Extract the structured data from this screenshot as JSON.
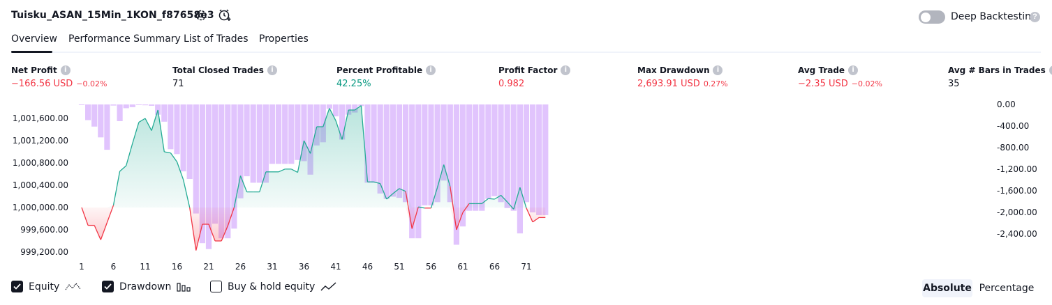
{
  "header": {
    "strategy_title": "Tuisku_ASAN_15Min_1KON_f87658e3",
    "deep_backtesting_label": "Deep Backtesting",
    "deep_backtesting_on": false,
    "icons": [
      "settings-icon",
      "add-alert-icon",
      "help-icon"
    ]
  },
  "tabs": [
    {
      "label": "Overview",
      "active": true
    },
    {
      "label": "Performance Summary",
      "active": false
    },
    {
      "label": "List of Trades",
      "active": false
    },
    {
      "label": "Properties",
      "active": false
    }
  ],
  "metrics": [
    {
      "label": "Net Profit",
      "value": "−166.56 USD",
      "percent": "−0.02%",
      "tone": "neg"
    },
    {
      "label": "Total Closed Trades",
      "value": "71",
      "percent": "",
      "tone": "neu"
    },
    {
      "label": "Percent Profitable",
      "value": "42.25%",
      "percent": "",
      "tone": "pos"
    },
    {
      "label": "Profit Factor",
      "value": "0.982",
      "percent": "",
      "tone": "neg"
    },
    {
      "label": "Max Drawdown",
      "value": "2,693.91 USD",
      "percent": "0.27%",
      "tone": "neg"
    },
    {
      "label": "Avg Trade",
      "value": "−2.35 USD",
      "percent": "−0.02%",
      "tone": "neg"
    },
    {
      "label": "Avg # Bars in Trades",
      "value": "35",
      "percent": "",
      "tone": "neu"
    }
  ],
  "chart_data": {
    "type": "line",
    "x_ticks": [
      "1",
      "6",
      "11",
      "16",
      "21",
      "26",
      "31",
      "36",
      "41",
      "46",
      "51",
      "56",
      "61",
      "66",
      "71"
    ],
    "left_axis": {
      "ticks": [
        "1,001,600.00",
        "1,001,200.00",
        "1,000,800.00",
        "1,000,400.00",
        "1,000,000.00",
        "999,600.00",
        "999,200.00"
      ]
    },
    "right_axis": {
      "ticks": [
        "0.00",
        "-400.00",
        "-800.00",
        "-1,200.00",
        "-1,600.00",
        "-2,000.00",
        "-2,400.00"
      ]
    },
    "baseline": 1000000,
    "colors": {
      "equity_up": "#22ab94",
      "equity_down": "#f23645",
      "drawdown_bar": "#cf9ffb",
      "fill_up": "#22ab94",
      "fill_down": "#f23645"
    },
    "series": [
      {
        "name": "Equity",
        "values": [
          1000000,
          999680,
          999680,
          999420,
          999730,
          1000040,
          1000650,
          1000750,
          1001150,
          1001530,
          1001600,
          1001380,
          1001750,
          1001000,
          1000980,
          1000820,
          1000500,
          1000000,
          999230,
          999700,
          999700,
          999400,
          999400,
          999670,
          1000000,
          1000570,
          1000280,
          1000280,
          1000280,
          1000640,
          1000640,
          1000640,
          1000690,
          1000690,
          1000630,
          1001200,
          1000970,
          1001450,
          1001450,
          1001780,
          1001560,
          1001220,
          1001750,
          1001750,
          1001830,
          1000460,
          1000460,
          1000430,
          1000150,
          1000250,
          1000340,
          1000290,
          999620,
          1000010,
          999990,
          999990,
          1000360,
          1000770,
          1000380,
          999600,
          999910,
          1000070,
          1000070,
          1000070,
          1000160,
          1000150,
          1000220,
          1000100,
          999970,
          1000360,
          999990,
          999740,
          999820,
          999820
        ]
      },
      {
        "name": "Drawdown",
        "values": [
          -10,
          -290,
          -410,
          -610,
          -840,
          -20,
          -310,
          -70,
          -50,
          -10,
          -15,
          -25,
          -190,
          -320,
          -830,
          -920,
          -1240,
          -1380,
          -2020,
          -2570,
          -2680,
          -2210,
          -2480,
          -2480,
          -2300,
          -1740,
          -1330,
          -1450,
          -1450,
          -1450,
          -1100,
          -1100,
          -1100,
          -1100,
          -1030,
          -1050,
          -1300,
          -760,
          -700,
          -80,
          -220,
          -650,
          -190,
          -150,
          -30,
          -1450,
          -1450,
          -1650,
          -1750,
          -1710,
          -1730,
          -1810,
          -2480,
          -2480,
          -1870,
          -1870,
          -1810,
          -1410,
          -1810,
          -2600,
          -2260,
          -1970,
          -1970,
          -1970,
          -1750,
          -1700,
          -1810,
          -1920,
          -1970,
          -2390,
          -1810,
          -2000,
          -2050,
          -2050
        ]
      }
    ]
  },
  "legend": {
    "equity": {
      "label": "Equity",
      "checked": true,
      "icon": "equity-line-icon"
    },
    "drawdown": {
      "label": "Drawdown",
      "checked": true,
      "icon": "drawdown-bars-icon"
    },
    "buyhold": {
      "label": "Buy & hold equity",
      "checked": false,
      "icon": "buyhold-line-icon"
    }
  },
  "scale_toggle": {
    "absolute_label": "Absolute",
    "percentage_label": "Percentage",
    "selected": "Absolute"
  }
}
